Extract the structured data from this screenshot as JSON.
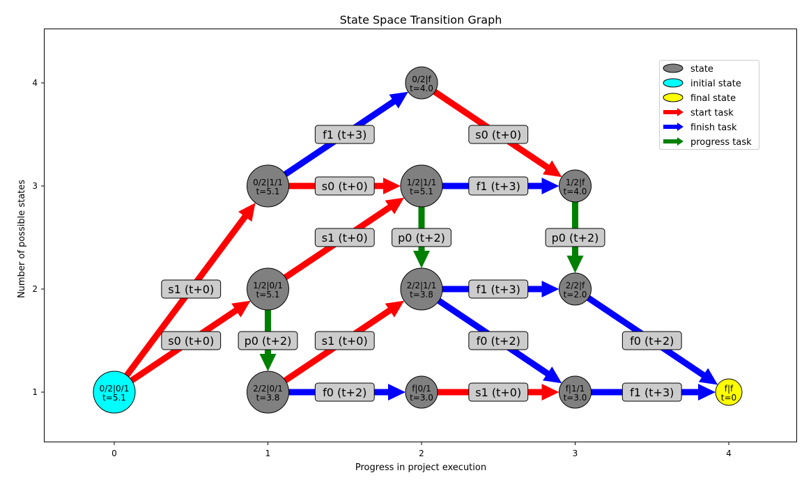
{
  "title": "State Space Transition Graph",
  "xlabel": "Progress in project execution",
  "ylabel": "Number of possible states",
  "xticks": [
    "0",
    "1",
    "2",
    "3",
    "4"
  ],
  "yticks": [
    "1",
    "2",
    "3",
    "4"
  ],
  "colors": {
    "state": "#808080",
    "initial": "#00ffff",
    "final": "#ffff00",
    "start": "#ff0000",
    "finish": "#0000ff",
    "progress": "#008000",
    "label_box": "#cccccc"
  },
  "legend": {
    "position": "upper right",
    "items": [
      {
        "label": "state",
        "kind": "marker",
        "color": "#808080"
      },
      {
        "label": "initial state",
        "kind": "marker",
        "color": "#00ffff"
      },
      {
        "label": "final state",
        "kind": "marker",
        "color": "#ffff00"
      },
      {
        "label": "start task",
        "kind": "arrow",
        "color": "#ff0000"
      },
      {
        "label": "finish task",
        "kind": "arrow",
        "color": "#0000ff"
      },
      {
        "label": "progress task",
        "kind": "arrow",
        "color": "#008000"
      }
    ]
  },
  "nodes": [
    {
      "id": "n00",
      "x": 0,
      "y": 1,
      "line1": "0/2|0/1",
      "line2": "t=5.1",
      "kind": "initial"
    },
    {
      "id": "n13",
      "x": 1,
      "y": 3,
      "line1": "0/2|1/1",
      "line2": "t=5.1",
      "kind": "state"
    },
    {
      "id": "n12",
      "x": 1,
      "y": 2,
      "line1": "1/2|0/1",
      "line2": "t=5.1",
      "kind": "state"
    },
    {
      "id": "n11",
      "x": 1,
      "y": 1,
      "line1": "2/2|0/1",
      "line2": "t=3.8",
      "kind": "state"
    },
    {
      "id": "n24",
      "x": 2,
      "y": 4,
      "line1": "0/2|f",
      "line2": "t=4.0",
      "kind": "state"
    },
    {
      "id": "n23",
      "x": 2,
      "y": 3,
      "line1": "1/2|1/1",
      "line2": "t=5.1",
      "kind": "state"
    },
    {
      "id": "n22",
      "x": 2,
      "y": 2,
      "line1": "2/2|1/1",
      "line2": "t=3.8",
      "kind": "state"
    },
    {
      "id": "n21",
      "x": 2,
      "y": 1,
      "line1": "f|0/1",
      "line2": "t=3.0",
      "kind": "state"
    },
    {
      "id": "n33",
      "x": 3,
      "y": 3,
      "line1": "1/2|f",
      "line2": "t=4.0",
      "kind": "state"
    },
    {
      "id": "n32",
      "x": 3,
      "y": 2,
      "line1": "2/2|f",
      "line2": "t=2.0",
      "kind": "state"
    },
    {
      "id": "n31",
      "x": 3,
      "y": 1,
      "line1": "f|1/1",
      "line2": "t=3.0",
      "kind": "state"
    },
    {
      "id": "n41",
      "x": 4,
      "y": 1,
      "line1": "f|f",
      "line2": "t=0",
      "kind": "final"
    }
  ],
  "edges": [
    {
      "from": "n00",
      "to": "n13",
      "kind": "start",
      "label": "s1 (t+0)"
    },
    {
      "from": "n00",
      "to": "n12",
      "kind": "start",
      "label": "s0 (t+0)"
    },
    {
      "from": "n13",
      "to": "n24",
      "kind": "finish",
      "label": "f1 (t+3)"
    },
    {
      "from": "n13",
      "to": "n23",
      "kind": "start",
      "label": "s0 (t+0)"
    },
    {
      "from": "n12",
      "to": "n23",
      "kind": "start",
      "label": "s1 (t+0)"
    },
    {
      "from": "n12",
      "to": "n11",
      "kind": "progress",
      "label": "p0 (t+2)"
    },
    {
      "from": "n11",
      "to": "n22",
      "kind": "start",
      "label": "s1 (t+0)"
    },
    {
      "from": "n11",
      "to": "n21",
      "kind": "finish",
      "label": "f0 (t+2)"
    },
    {
      "from": "n24",
      "to": "n33",
      "kind": "start",
      "label": "s0 (t+0)"
    },
    {
      "from": "n23",
      "to": "n33",
      "kind": "finish",
      "label": "f1 (t+3)"
    },
    {
      "from": "n23",
      "to": "n22",
      "kind": "progress",
      "label": "p0 (t+2)"
    },
    {
      "from": "n22",
      "to": "n32",
      "kind": "finish",
      "label": "f1 (t+3)"
    },
    {
      "from": "n22",
      "to": "n31",
      "kind": "finish",
      "label": "f0 (t+2)"
    },
    {
      "from": "n21",
      "to": "n31",
      "kind": "start",
      "label": "s1 (t+0)"
    },
    {
      "from": "n33",
      "to": "n32",
      "kind": "progress",
      "label": "p0 (t+2)"
    },
    {
      "from": "n32",
      "to": "n41",
      "kind": "finish",
      "label": "f0 (t+2)"
    },
    {
      "from": "n31",
      "to": "n41",
      "kind": "finish",
      "label": "f1 (t+3)"
    }
  ]
}
